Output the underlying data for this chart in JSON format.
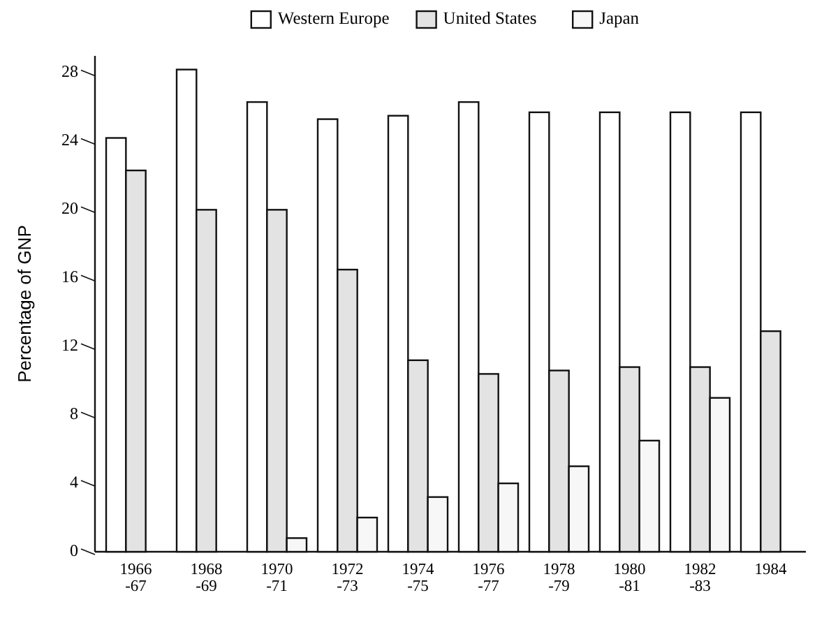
{
  "chart_data": {
    "type": "bar",
    "ylabel": "Percentage of GNP",
    "categories": [
      "1966-67",
      "1968-69",
      "1970-71",
      "1972-73",
      "1974-75",
      "1976-77",
      "1978-79",
      "1980-81",
      "1982-83",
      "1984"
    ],
    "series": [
      {
        "name": "Western Europe",
        "color": "#ffffff",
        "values": [
          24.2,
          28.2,
          26.3,
          25.3,
          25.5,
          26.3,
          25.7,
          25.7,
          25.7,
          25.7
        ]
      },
      {
        "name": "United States",
        "color": "#e3e3e3",
        "values": [
          22.3,
          20,
          20,
          16.5,
          11.2,
          10.4,
          10.6,
          10.8,
          10.8,
          12.9
        ]
      },
      {
        "name": "Japan",
        "color": "#f7f7f7",
        "values": [
          0,
          0,
          0.8,
          2,
          3.2,
          4,
          5,
          6.5,
          9,
          0
        ]
      }
    ],
    "ylim": [
      0,
      29
    ],
    "yticks": [
      0,
      4,
      8,
      12,
      16,
      20,
      24,
      28
    ],
    "grid": false,
    "legend": "top"
  }
}
